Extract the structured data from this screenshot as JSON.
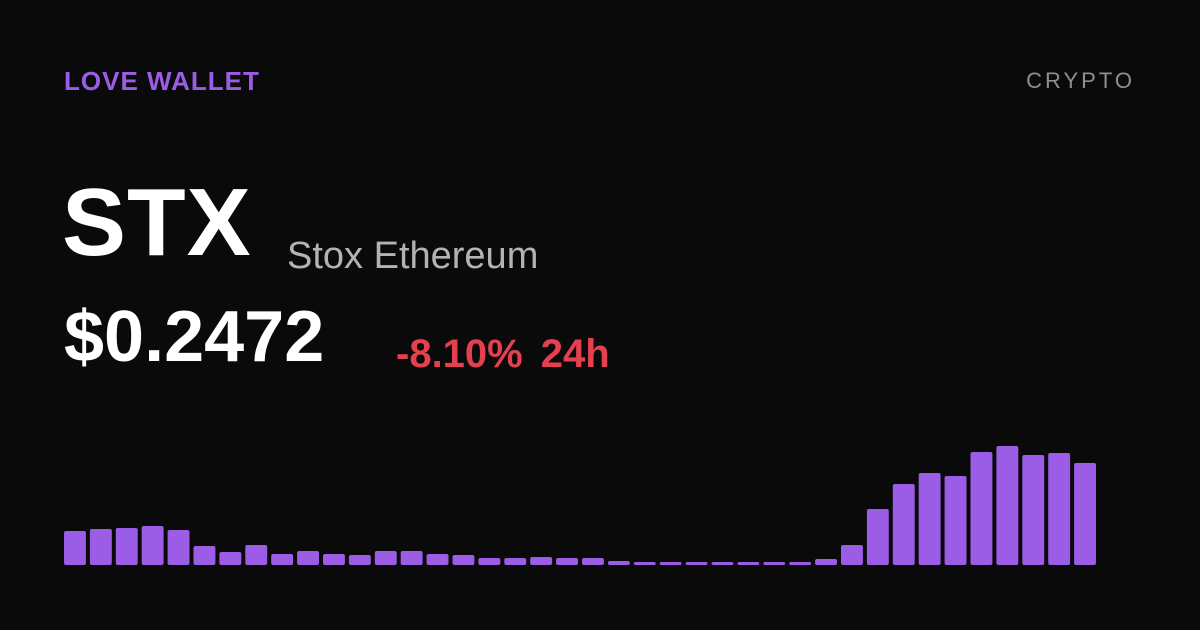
{
  "header": {
    "brand": "LOVE WALLET",
    "category": "CRYPTO"
  },
  "asset": {
    "ticker": "STX",
    "name": "Stox Ethereum",
    "price": "$0.2472",
    "change_pct": "-8.10%",
    "change_period": "24h"
  },
  "colors": {
    "background": "#0b0a0b",
    "brand": "#9b5de5",
    "bar": "#9b5de5",
    "negative": "#e5404f",
    "secondary_text": "#b3b3b3"
  },
  "chart_data": {
    "type": "bar",
    "values": [
      34,
      36,
      37,
      39,
      35,
      19,
      13,
      20,
      11,
      14,
      11,
      10,
      14,
      14,
      11,
      10,
      7,
      7,
      8,
      7,
      7,
      4,
      3,
      3,
      3,
      3,
      3,
      3,
      3,
      6,
      20,
      56,
      81,
      92,
      89,
      113,
      119,
      110,
      112,
      102
    ],
    "ylim": [
      0,
      119
    ],
    "grid": false,
    "legend": "none"
  }
}
